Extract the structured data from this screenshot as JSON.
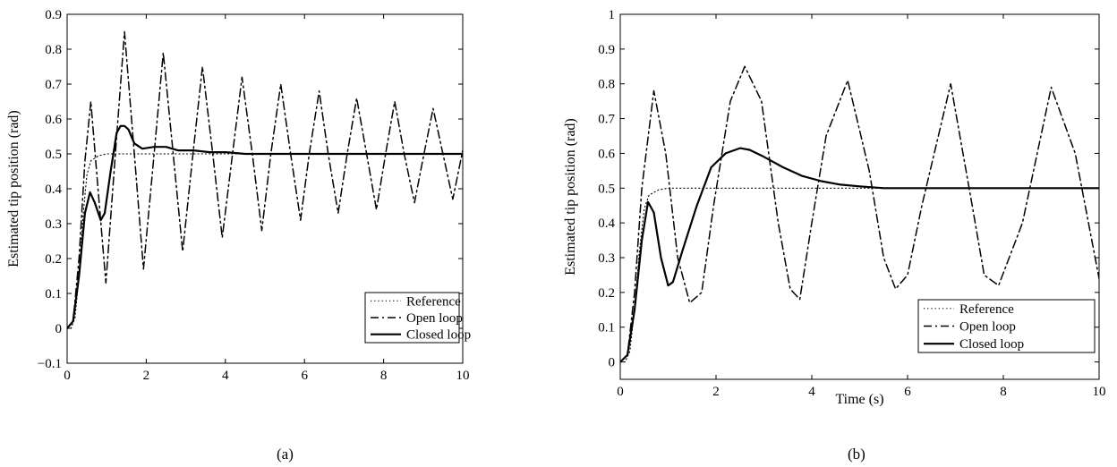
{
  "chart_data": [
    {
      "type": "line",
      "panel_label": "(a)",
      "title": "",
      "xlabel": "",
      "ylabel": "Estimated tip position (rad)",
      "xlim": [
        0,
        10
      ],
      "ylim": [
        -0.1,
        0.9
      ],
      "xticks": [
        0,
        2,
        4,
        6,
        8,
        10
      ],
      "yticks": [
        -0.1,
        0,
        0.1,
        0.2,
        0.3,
        0.4,
        0.5,
        0.6,
        0.7,
        0.8,
        0.9
      ],
      "ytick_labels": [
        "−0.1",
        "0",
        "0.1",
        "0.2",
        "0.3",
        "0.4",
        "0.5",
        "0.6",
        "0.7",
        "0.8",
        "0.9"
      ],
      "grid": false,
      "legend_position": "bottom-right",
      "series": [
        {
          "name": "Reference",
          "style": "dotted",
          "x": [
            0,
            0.1,
            0.2,
            0.3,
            0.4,
            0.5,
            0.6,
            0.8,
            1.0,
            1.5,
            2.0,
            4.0,
            6.0,
            8.0,
            10.0
          ],
          "y": [
            0,
            0,
            0.03,
            0.15,
            0.32,
            0.44,
            0.48,
            0.495,
            0.5,
            0.5,
            0.5,
            0.5,
            0.5,
            0.5,
            0.5
          ]
        },
        {
          "name": "Open loop",
          "style": "dashdot",
          "x": [
            0,
            0.15,
            0.3,
            0.45,
            0.6,
            0.78,
            0.98,
            1.22,
            1.45,
            1.7,
            1.93,
            2.2,
            2.43,
            2.68,
            2.92,
            3.18,
            3.42,
            3.68,
            3.92,
            4.18,
            4.42,
            4.68,
            4.92,
            5.15,
            5.4,
            5.65,
            5.9,
            6.12,
            6.37,
            6.6,
            6.85,
            7.08,
            7.32,
            7.57,
            7.82,
            8.05,
            8.28,
            8.52,
            8.78,
            9.02,
            9.25,
            9.5,
            9.75,
            10.0
          ],
          "y": [
            0,
            0.02,
            0.2,
            0.48,
            0.65,
            0.4,
            0.13,
            0.5,
            0.85,
            0.5,
            0.17,
            0.5,
            0.79,
            0.5,
            0.22,
            0.5,
            0.75,
            0.5,
            0.26,
            0.5,
            0.72,
            0.5,
            0.28,
            0.5,
            0.7,
            0.5,
            0.31,
            0.5,
            0.68,
            0.5,
            0.33,
            0.5,
            0.66,
            0.5,
            0.34,
            0.5,
            0.65,
            0.5,
            0.36,
            0.5,
            0.63,
            0.5,
            0.37,
            0.51
          ]
        },
        {
          "name": "Closed loop",
          "style": "solid",
          "x": [
            0,
            0.15,
            0.3,
            0.45,
            0.58,
            0.7,
            0.85,
            0.95,
            1.1,
            1.25,
            1.35,
            1.45,
            1.55,
            1.7,
            1.9,
            2.2,
            2.5,
            2.8,
            3.2,
            3.6,
            4.0,
            4.5,
            5.0,
            6.0,
            7.0,
            8.0,
            9.0,
            10.0
          ],
          "y": [
            0,
            0.02,
            0.15,
            0.33,
            0.39,
            0.36,
            0.31,
            0.33,
            0.45,
            0.56,
            0.58,
            0.58,
            0.57,
            0.53,
            0.515,
            0.52,
            0.52,
            0.51,
            0.51,
            0.505,
            0.505,
            0.5,
            0.5,
            0.5,
            0.5,
            0.5,
            0.5,
            0.5
          ]
        }
      ]
    },
    {
      "type": "line",
      "panel_label": "(b)",
      "title": "",
      "xlabel": "Time (s)",
      "ylabel": "Estimated tip position (rad)",
      "xlim": [
        0,
        10
      ],
      "ylim": [
        -0.05,
        1
      ],
      "xticks": [
        0,
        2,
        4,
        6,
        8,
        10
      ],
      "yticks": [
        0,
        0.1,
        0.2,
        0.3,
        0.4,
        0.5,
        0.6,
        0.7,
        0.8,
        0.9,
        1
      ],
      "ytick_labels": [
        "0",
        "0.1",
        "0.2",
        "0.3",
        "0.4",
        "0.5",
        "0.6",
        "0.7",
        "0.8",
        "0.9",
        "1"
      ],
      "grid": false,
      "legend_position": "bottom-right",
      "series": [
        {
          "name": "Reference",
          "style": "dotted",
          "x": [
            0,
            0.1,
            0.2,
            0.3,
            0.4,
            0.5,
            0.6,
            0.8,
            1.0,
            2.0,
            4.0,
            6.0,
            8.0,
            10.0
          ],
          "y": [
            0,
            0,
            0.03,
            0.15,
            0.32,
            0.44,
            0.48,
            0.495,
            0.5,
            0.5,
            0.5,
            0.5,
            0.5,
            0.5
          ]
        },
        {
          "name": "Open loop",
          "style": "dashdot",
          "x": [
            0,
            0.15,
            0.3,
            0.45,
            0.7,
            0.95,
            1.2,
            1.45,
            1.7,
            1.95,
            2.3,
            2.6,
            2.95,
            3.3,
            3.55,
            3.75,
            4.0,
            4.3,
            4.75,
            5.2,
            5.5,
            5.75,
            6.0,
            6.3,
            6.9,
            7.35,
            7.6,
            7.9,
            8.4,
            9.0,
            9.5,
            10.0
          ],
          "y": [
            0,
            0.02,
            0.2,
            0.5,
            0.78,
            0.6,
            0.3,
            0.17,
            0.2,
            0.45,
            0.75,
            0.85,
            0.75,
            0.4,
            0.21,
            0.18,
            0.4,
            0.65,
            0.81,
            0.55,
            0.3,
            0.21,
            0.25,
            0.45,
            0.8,
            0.45,
            0.25,
            0.22,
            0.4,
            0.79,
            0.6,
            0.24
          ]
        },
        {
          "name": "Closed loop",
          "style": "solid",
          "x": [
            0,
            0.15,
            0.3,
            0.45,
            0.58,
            0.7,
            0.85,
            1.0,
            1.1,
            1.3,
            1.6,
            1.9,
            2.2,
            2.5,
            2.7,
            3.0,
            3.4,
            3.8,
            4.2,
            4.6,
            5.0,
            5.5,
            6.0,
            7.0,
            8.0,
            9.0,
            10.0
          ],
          "y": [
            0,
            0.02,
            0.15,
            0.35,
            0.46,
            0.43,
            0.3,
            0.22,
            0.23,
            0.32,
            0.45,
            0.56,
            0.6,
            0.615,
            0.61,
            0.59,
            0.56,
            0.535,
            0.52,
            0.51,
            0.505,
            0.5,
            0.5,
            0.5,
            0.5,
            0.5,
            0.5
          ]
        }
      ]
    }
  ]
}
